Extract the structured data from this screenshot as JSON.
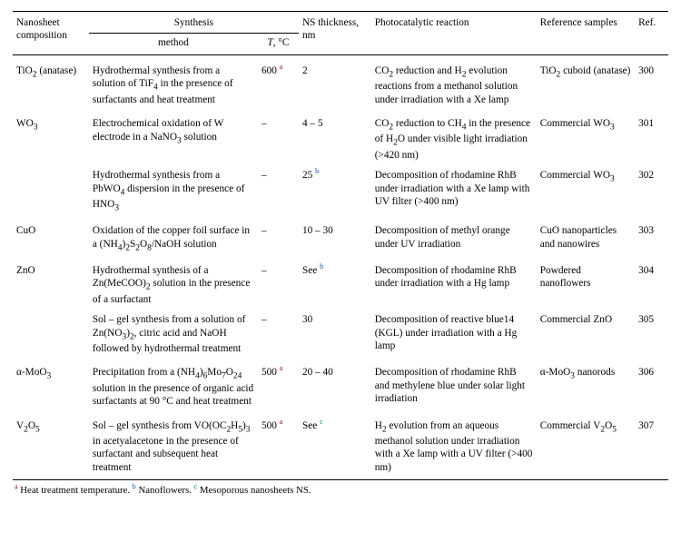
{
  "header": {
    "composition": "Nanosheet composition",
    "synthesis": "Synthesis",
    "method": "method",
    "temperature_html": "<i>T</i>, °C",
    "thickness": "NS thickness, nm",
    "reaction": "Photocatalytic reaction",
    "reference_samples": "Reference samples",
    "ref": "Ref."
  },
  "rows": [
    {
      "group_first": true,
      "composition_html": "TiO<sub>2</sub> (anatase)",
      "method_html": "Hydrothermal synthesis from a solution of TiF<sub>4</sub> in the presence of surfactants and heat treatment",
      "temp_html": "600 <span class='sup note-a'>a</span>",
      "thickness_html": "2",
      "reaction_html": "CO<sub>2</sub> reduction and H<sub>2</sub> evolution reactions from a methanol solution under irradiation with a Xe lamp",
      "refsamples_html": "TiO<sub>2</sub> cuboid (anatase)",
      "ref": "300"
    },
    {
      "group_first": true,
      "composition_html": "WO<sub>3</sub>",
      "method_html": "Electrochemical oxidation of W electrode in a NaNO<sub>3</sub> solution",
      "temp_html": "–",
      "thickness_html": "4 – 5",
      "reaction_html": "CO<sub>2</sub> reduction to CH<sub>4</sub> in the presence of H<sub>2</sub>O under visible light irradiation (&gt;420 nm)",
      "refsamples_html": "Commercial WO<sub>3</sub>",
      "ref": "301"
    },
    {
      "group_first": false,
      "composition_html": "",
      "method_html": "Hydrothermal synthesis from a PbWO<sub>4</sub> dispersion in the presence of HNO<sub>3</sub>",
      "temp_html": "–",
      "thickness_html": "25 <span class='sup note-b'>b</span>",
      "reaction_html": "Decomposition of rhodamine RhB under irradiation with a Xe lamp with UV filter (&gt;400 nm)",
      "refsamples_html": "Commercial WO<sub>3</sub>",
      "ref": "302"
    },
    {
      "group_first": true,
      "composition_html": "CuO",
      "method_html": "Oxidation of the copper foil surface in a (NH<sub>4</sub>)<sub>2</sub>S<sub>2</sub>O<sub>8</sub>/NaOH solution",
      "temp_html": "–",
      "thickness_html": "10 – 30",
      "reaction_html": "Decomposition of methyl orange under UV irradiation",
      "refsamples_html": "CuO nanoparticles and nanowires",
      "ref": "303"
    },
    {
      "group_first": true,
      "composition_html": "ZnO",
      "method_html": "Hydrothermal synthesis of a Zn(MeCOO)<sub>2</sub> solution in the presence of a surfactant",
      "temp_html": "–",
      "thickness_html": "See <span class='sup note-b'>b</span>",
      "reaction_html": "Decomposition of rhodamine RhB under irradiation with a Hg lamp",
      "refsamples_html": "Powdered nanoflowers",
      "ref": "304"
    },
    {
      "group_first": false,
      "composition_html": "",
      "method_html": "Sol – gel synthesis from a solution of Zn(NO<sub>3</sub>)<sub>2</sub>, citric acid and NaOH followed by hydrothermal treatment",
      "temp_html": "–",
      "thickness_html": "30",
      "reaction_html": "Decomposition of reactive blue14 (KGL) under irradiation with a Hg lamp",
      "refsamples_html": "Commercial ZnO",
      "ref": "305"
    },
    {
      "group_first": true,
      "composition_html": "α-MoO<sub>3</sub>",
      "method_html": "Precipitation from a (NH<sub>4</sub>)<sub>6</sub>Mo<sub>7</sub>O<sub>24</sub> solution in the presence of organic acid surfactants at 90 °C and heat treatment",
      "temp_html": "500 <span class='sup note-a'>a</span>",
      "thickness_html": "20 – 40",
      "reaction_html": "Decomposition of rhodamine RhB and methylene blue under solar light irradiation",
      "refsamples_html": "α-MoO<sub>3</sub> nanorods",
      "ref": "306"
    },
    {
      "group_first": true,
      "composition_html": "V<sub>2</sub>O<sub>5</sub>",
      "method_html": "Sol – gel synthesis from VO(OC<sub>2</sub>H<sub>5</sub>)<sub>3</sub> in acetyalacetone in the presence of surfactant and subsequent heat treatment",
      "temp_html": "500 <span class='sup note-a'>a</span>",
      "thickness_html": "See <span class='sup note-c'>c</span>",
      "reaction_html": "H<sub>2</sub> evolution from an aqueous methanol solution under irradiation with a Xe lamp with a UV filter (&gt;400 nm)",
      "refsamples_html": "Commercial V<sub>2</sub>O<sub>5</sub>",
      "ref": "307"
    }
  ],
  "footnotes": {
    "a_html": "<span class='sup note-a'>a</span> Heat treatment temperature.",
    "b_html": "<span class='sup note-b'>b</span> Nanoflowers.",
    "c_html": "<span class='sup note-c'>c</span> Mesoporous nanosheets NS."
  }
}
